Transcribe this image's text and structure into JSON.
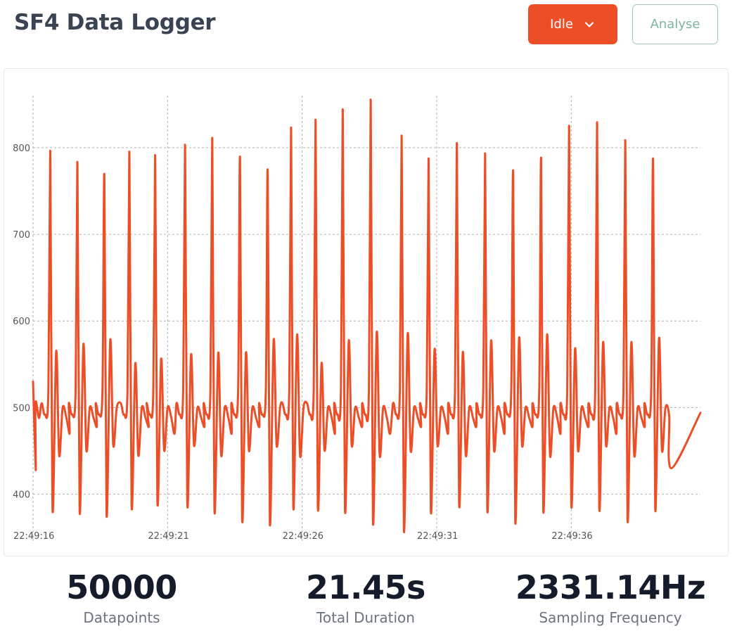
{
  "header": {
    "title": "SF4 Data Logger",
    "status_label": "Idle",
    "analyse_label": "Analyse"
  },
  "colors": {
    "accent": "#ec4f27",
    "analyse_border": "#9fc8b8",
    "analyse_text": "#7fb4a1",
    "grid": "#b0b0b0"
  },
  "icons": {
    "status_dropdown": "chevron-down-icon"
  },
  "stats": [
    {
      "value": "50000",
      "label": "Datapoints"
    },
    {
      "value": "21.45s",
      "label": "Total Duration"
    },
    {
      "value": "2331.14Hz",
      "label": "Sampling Frequency"
    }
  ],
  "chart_data": {
    "type": "line",
    "x_ticks": [
      "22:49:16",
      "22:49:21",
      "22:49:26",
      "22:49:31",
      "22:49:36"
    ],
    "x_tick_seconds": [
      0,
      5,
      10,
      15,
      20
    ],
    "xlim_seconds": [
      0,
      24.8
    ],
    "y_ticks": [
      400,
      500,
      600,
      700,
      800
    ],
    "ylim": [
      355,
      860
    ],
    "grid": true,
    "series": [
      {
        "color": "#ec4f27",
        "beat_times_s": [
          0.64,
          1.65,
          2.65,
          3.58,
          4.54,
          5.65,
          6.66,
          7.69,
          8.72,
          9.59,
          10.5,
          11.51,
          12.55,
          13.7,
          14.7,
          15.75,
          16.8,
          17.84,
          18.88,
          19.92,
          20.96,
          22.01,
          23.04
        ],
        "peak_values": [
          795,
          782,
          768,
          794,
          790,
          802,
          810,
          788,
          773,
          822,
          831,
          843,
          854,
          812,
          786,
          804,
          792,
          772,
          787,
          824,
          828,
          807,
          786
        ],
        "trough_values": [
          384,
          381,
          377,
          388,
          392,
          390,
          383,
          372,
          367,
          387,
          388,
          384,
          370,
          360,
          382,
          390,
          383,
          369,
          382,
          390,
          386,
          372,
          384
        ],
        "secondary_peak_values": [
          565,
          573,
          578,
          551,
          556,
          561,
          563,
          563,
          578,
          584,
          551,
          577,
          587,
          585,
          567,
          564,
          577,
          580,
          584,
          568,
          575,
          575,
          580
        ],
        "start_value": 530,
        "end_value": 494
      }
    ]
  }
}
